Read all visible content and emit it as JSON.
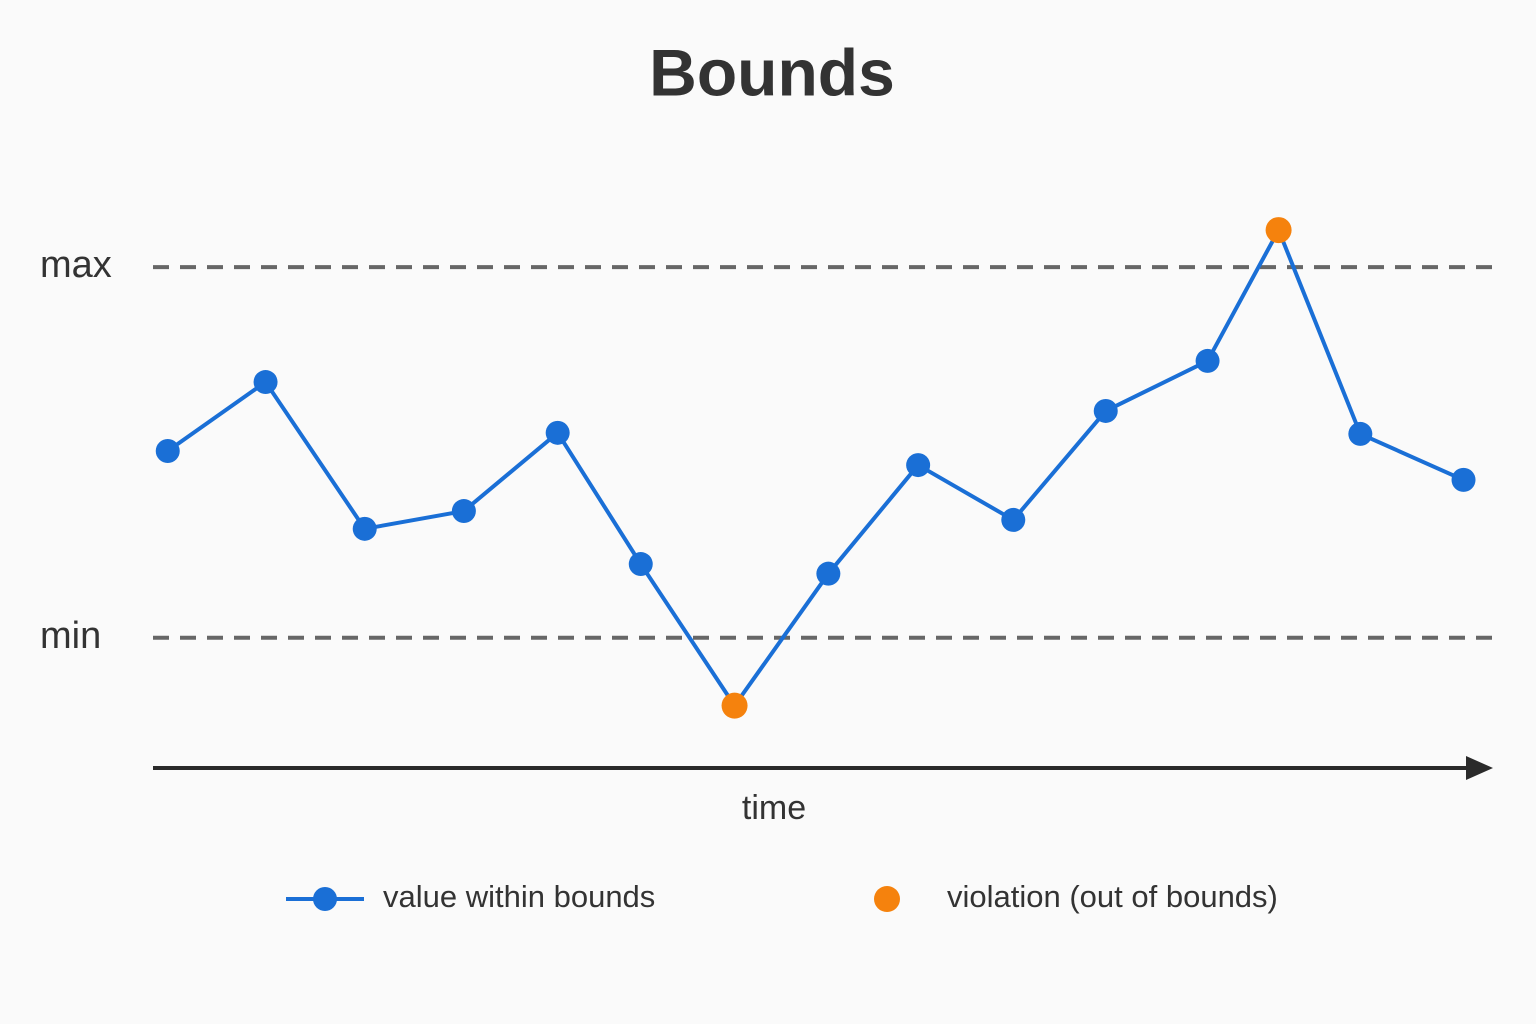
{
  "chart_data": {
    "type": "line",
    "title": "Bounds",
    "xlabel": "time",
    "x": [
      1.1,
      8.4,
      15.8,
      23.2,
      30.2,
      36.4,
      43.4,
      50.4,
      57.1,
      64.2,
      71.1,
      78.7,
      84.0,
      90.1,
      97.8
    ],
    "series": [
      {
        "name": "value within bounds",
        "color": "#1a6fd6",
        "values": [
          50.4,
          69.0,
          29.4,
          34.2,
          55.3,
          19.9,
          -18.3,
          17.3,
          46.6,
          31.8,
          61.2,
          74.7,
          110.0,
          55.0,
          42.6
        ]
      },
      {
        "name": "violation (out of bounds)",
        "color": "#f5820d",
        "values": [
          null,
          null,
          null,
          null,
          null,
          null,
          -18.3,
          null,
          null,
          null,
          null,
          null,
          110.0,
          null,
          null
        ]
      }
    ],
    "xlim": [
      0,
      100
    ],
    "ylim": [
      -30,
      120
    ],
    "yticks": [
      {
        "value": 100,
        "label": "max"
      },
      {
        "value": 0,
        "label": "min"
      }
    ],
    "grid": true
  }
}
